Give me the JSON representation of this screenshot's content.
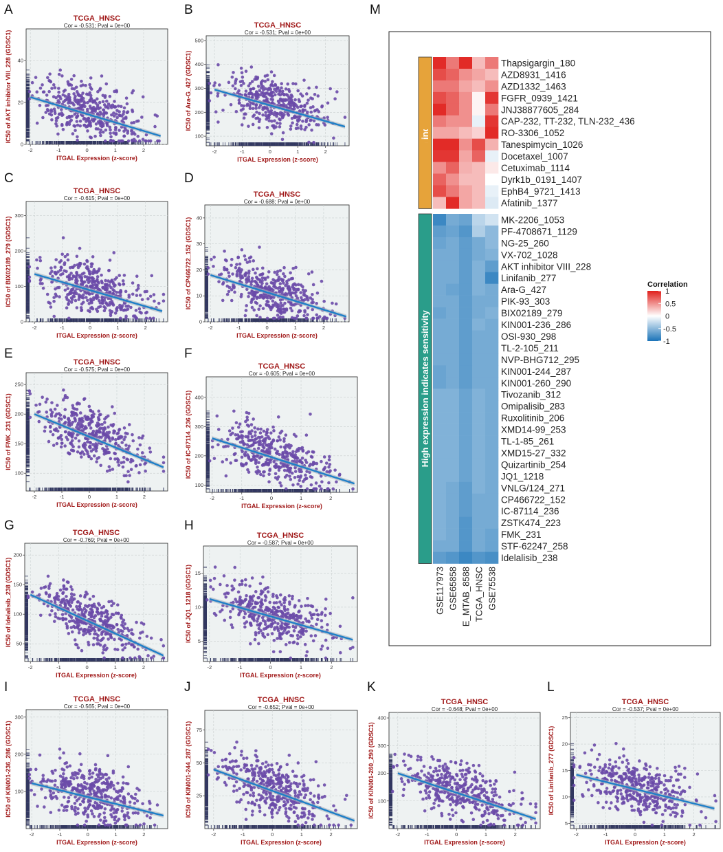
{
  "scatter_panels": [
    {
      "label": "A",
      "title": "TCGA_HNSC",
      "subtitle": "Cor = -0.531; Pval = 0e+00",
      "xlabel": "ITGAL Expression (z-score)",
      "ylabel": "IC50 of AKT inhibitor VIII_228 (GDSC1)",
      "xticks": [
        -2,
        -1,
        0,
        1,
        2
      ],
      "ylim": [
        0,
        55
      ],
      "yticks": [
        0,
        20,
        40
      ],
      "xlim": [
        -2.15,
        2.85
      ],
      "fit": [
        [
          -2,
          22.5
        ],
        [
          2.6,
          4
        ]
      ],
      "noise": 0.22
    },
    {
      "label": "B",
      "title": "TCGA_HNSC",
      "subtitle": "Cor = -0.531; Pval = 0e+00",
      "xlabel": "ITGAL Expression (z-score)",
      "ylabel": "IC50 of Ara-G_427 (GDSC1)",
      "xticks": [
        -2,
        -1,
        0,
        1,
        2
      ],
      "ylim": [
        60,
        520
      ],
      "yticks": [
        100,
        200,
        300,
        400,
        500
      ],
      "xlim": [
        -2.3,
        2.85
      ],
      "fit": [
        [
          -2,
          295
        ],
        [
          2.7,
          140
        ]
      ],
      "noise": 0.2
    },
    {
      "label": "C",
      "title": "TCGA_HNSC",
      "subtitle": "Cor = -0.615; Pval = 0e+00",
      "xlabel": "ITGAL Expression (z-score)",
      "ylabel": "IC50 of BIX02189_279 (GDSC1)",
      "xticks": [
        -2,
        -1,
        0,
        1,
        2
      ],
      "ylim": [
        0,
        340
      ],
      "yticks": [
        0,
        100,
        200,
        300
      ],
      "xlim": [
        -2.3,
        2.8
      ],
      "fit": [
        [
          -2,
          135
        ],
        [
          2.6,
          30
        ]
      ],
      "noise": 0.2
    },
    {
      "label": "D",
      "title": "TCGA_HNSC",
      "subtitle": "Cor = -0.688; Pval = 0e+00",
      "xlabel": "ITGAL Expression (z-score)",
      "ylabel": "IC50 of CP466722_152 (GDSC1)",
      "xticks": [
        -2,
        -1,
        0,
        1,
        2
      ],
      "ylim": [
        0,
        45
      ],
      "yticks": [
        0,
        10,
        20,
        30,
        40
      ],
      "xlim": [
        -2.2,
        2.9
      ],
      "fit": [
        [
          -2,
          18
        ],
        [
          2.8,
          2
        ]
      ],
      "noise": 0.2
    },
    {
      "label": "E",
      "title": "TCGA_HNSC",
      "subtitle": "Cor = -0.575; Pval = 0e+00",
      "xlabel": "ITGAL Expression (z-score)",
      "ylabel": "IC50 of FMK_231 (GDSC1)",
      "xticks": [
        -2,
        -1,
        0,
        1,
        2
      ],
      "ylim": [
        70,
        270
      ],
      "yticks": [
        100,
        150,
        200,
        250
      ],
      "xlim": [
        -2.3,
        2.85
      ],
      "fit": [
        [
          -2,
          200
        ],
        [
          2.7,
          110
        ]
      ],
      "noise": 0.2
    },
    {
      "label": "F",
      "title": "TCGA_HNSC",
      "subtitle": "Cor = -0.605; Pval = 0e+00",
      "xlabel": "ITGAL Expression (z-score)",
      "ylabel": "IC50 of IC-87114_236 (GDSC1)",
      "xticks": [
        -2,
        -1,
        0,
        1,
        2
      ],
      "ylim": [
        75,
        470
      ],
      "yticks": [
        100,
        200,
        300,
        400
      ],
      "xlim": [
        -2.2,
        2.9
      ],
      "fit": [
        [
          -2,
          260
        ],
        [
          2.8,
          105
        ]
      ],
      "noise": 0.2
    },
    {
      "label": "G",
      "title": "TCGA_HNSC",
      "subtitle": "Cor = -0.769; Pval = 0e+00",
      "xlabel": "ITGAL Expression (z-score)",
      "ylabel": "IC50 of Idelalisib_238 (GDSC1)",
      "xticks": [
        -2,
        -1,
        0,
        1,
        2
      ],
      "ylim": [
        20,
        220
      ],
      "yticks": [
        50,
        100,
        150,
        200
      ],
      "xlim": [
        -2.2,
        2.85
      ],
      "fit": [
        [
          -2,
          133
        ],
        [
          2.7,
          30
        ]
      ],
      "noise": 0.18
    },
    {
      "label": "H",
      "title": "TCGA_HNSC",
      "subtitle": "Cor = -0.587; Pval = 0e+00",
      "xlabel": "ITGAL Expression (z-score)",
      "ylabel": "IC50 of JQ1_1218 (GDSC1)",
      "xticks": [
        -2,
        -1,
        0,
        1,
        2
      ],
      "ylim": [
        2,
        19
      ],
      "yticks": [
        5,
        10,
        15
      ],
      "xlim": [
        -2.2,
        2.85
      ],
      "fit": [
        [
          -2,
          11.2
        ],
        [
          2.7,
          5.2
        ]
      ],
      "noise": 0.2
    },
    {
      "label": "I",
      "title": "TCGA_HNSC",
      "subtitle": "Cor = -0.565; Pval = 0e+00",
      "xlabel": "ITGAL Expression (z-score)",
      "ylabel": "IC50 of KIN001-236_286 (GDSC1)",
      "xticks": [
        -2,
        -1,
        0,
        1,
        2
      ],
      "ylim": [
        0,
        320
      ],
      "yticks": [
        100,
        200,
        300
      ],
      "xlim": [
        -2.2,
        2.85
      ],
      "fit": [
        [
          -2,
          122
        ],
        [
          2.7,
          35
        ]
      ],
      "noise": 0.22
    },
    {
      "label": "J",
      "title": "TCGA_HNSC",
      "subtitle": "Cor = -0.652; Pval = 0e+00",
      "xlabel": "ITGAL Expression (z-score)",
      "ylabel": "IC50 of KIN001-244_287 (GDSC1)",
      "xticks": [
        -2,
        -1,
        0,
        1,
        2
      ],
      "ylim": [
        0,
        90
      ],
      "yticks": [
        25,
        50,
        75
      ],
      "xlim": [
        -2.3,
        2.9
      ],
      "fit": [
        [
          -2,
          45
        ],
        [
          2.8,
          6
        ]
      ],
      "noise": 0.2
    },
    {
      "label": "K",
      "title": "TCGA_HNSC",
      "subtitle": "Cor = -0.648; Pval = 0e+00",
      "xlabel": "ITGAL Expression (z-score)",
      "ylabel": "IC50 of KIN001-260_290 (GDSC1)",
      "xticks": [
        -2,
        -1,
        0,
        1,
        2
      ],
      "ylim": [
        0,
        420
      ],
      "yticks": [
        100,
        200,
        300,
        400
      ],
      "xlim": [
        -2.3,
        2.85
      ],
      "fit": [
        [
          -2,
          200
        ],
        [
          2.7,
          35
        ]
      ],
      "noise": 0.2
    },
    {
      "label": "L",
      "title": "TCGA_HNSC",
      "subtitle": "Cor = -0.537; Pval = 0e+00",
      "xlabel": "ITGAL Expression (z-score)",
      "ylabel": "IC50 of Linifanib_277 (GDSC1)",
      "xticks": [
        -2,
        -1,
        0,
        1,
        2
      ],
      "ylim": [
        4,
        26
      ],
      "yticks": [
        5,
        10,
        15,
        20,
        25
      ],
      "xlim": [
        -2.2,
        2.9
      ],
      "fit": [
        [
          -2,
          14.2
        ],
        [
          2.7,
          7.8
        ]
      ],
      "noise": 0.2
    }
  ],
  "heatmap": {
    "label": "M",
    "columns": [
      "GSE117973",
      "GSE65858",
      "E_MTAB_8588",
      "TCGA_HNSC",
      "GSE75538"
    ],
    "group_resistant": "High expression indicates resistance",
    "group_sensitive": "High expression indicates sensitivity",
    "legend_title": "Correlation",
    "legend_ticks": [
      "1",
      "0.5",
      "0",
      "-0.5",
      "-1"
    ],
    "resistant_rows": [
      {
        "drug": "Thapsigargin_180",
        "values": [
          0.95,
          0.6,
          0.95,
          0.3,
          0.6
        ]
      },
      {
        "drug": "AZD8931_1416",
        "values": [
          0.8,
          0.7,
          0.5,
          0.4,
          0.3
        ]
      },
      {
        "drug": "AZD1332_1463",
        "values": [
          0.6,
          0.6,
          0.4,
          0.3,
          0.5
        ]
      },
      {
        "drug": "FGFR_0939_1421",
        "values": [
          0.8,
          0.7,
          0.5,
          0.05,
          0.9
        ]
      },
      {
        "drug": "JNJ38877605_284",
        "values": [
          0.95,
          0.7,
          0.5,
          0.05,
          0.6
        ]
      },
      {
        "drug": "CAP-232, TT-232, TLN-232_436",
        "values": [
          0.6,
          0.5,
          0.5,
          -0.1,
          0.9
        ]
      },
      {
        "drug": "RO-3306_1052",
        "values": [
          0.4,
          0.4,
          0.3,
          0.2,
          0.95
        ]
      },
      {
        "drug": "Tanespimycin_1026",
        "values": [
          0.95,
          0.95,
          0.5,
          0.8,
          0.35
        ]
      },
      {
        "drug": "Docetaxel_1007",
        "values": [
          0.9,
          0.9,
          0.4,
          0.7,
          -0.1
        ]
      },
      {
        "drug": "Cetuximab_1114",
        "values": [
          0.5,
          0.7,
          0.35,
          0.3,
          0.1
        ]
      },
      {
        "drug": "Dyrk1b_0191_1407",
        "values": [
          0.7,
          0.5,
          0.3,
          0.3,
          0.0
        ]
      },
      {
        "drug": "EphB4_9721_1413",
        "values": [
          0.8,
          0.6,
          0.4,
          0.3,
          -0.1
        ]
      },
      {
        "drug": "Afatinib_1377",
        "values": [
          0.3,
          0.95,
          0.4,
          0.3,
          -0.15
        ]
      }
    ],
    "sensitive_rows": [
      {
        "drug": "MK-2206_1053",
        "values": [
          -0.85,
          -0.6,
          -0.65,
          -0.3,
          -0.2
        ]
      },
      {
        "drug": "PF-4708671_1129",
        "values": [
          -0.7,
          -0.65,
          -0.75,
          -0.35,
          -0.5
        ]
      },
      {
        "drug": "NG-25_260",
        "values": [
          -0.65,
          -0.6,
          -0.7,
          -0.6,
          -0.5
        ]
      },
      {
        "drug": "VX-702_1028",
        "values": [
          -0.6,
          -0.6,
          -0.7,
          -0.6,
          -0.55
        ]
      },
      {
        "drug": "AKT inhibitor VIII_228",
        "values": [
          -0.6,
          -0.6,
          -0.7,
          -0.55,
          -0.7
        ]
      },
      {
        "drug": "Linifanib_277",
        "values": [
          -0.6,
          -0.6,
          -0.7,
          -0.55,
          -0.85
        ]
      },
      {
        "drug": "Ara-G_427",
        "values": [
          -0.6,
          -0.65,
          -0.7,
          -0.55,
          -0.6
        ]
      },
      {
        "drug": "PIK-93_303",
        "values": [
          -0.6,
          -0.6,
          -0.7,
          -0.6,
          -0.6
        ]
      },
      {
        "drug": "BIX02189_279",
        "values": [
          -0.65,
          -0.6,
          -0.7,
          -0.6,
          -0.55
        ]
      },
      {
        "drug": "KIN001-236_286",
        "values": [
          -0.6,
          -0.6,
          -0.7,
          -0.55,
          -0.6
        ]
      },
      {
        "drug": "OSI-930_298",
        "values": [
          -0.6,
          -0.6,
          -0.7,
          -0.6,
          -0.6
        ]
      },
      {
        "drug": "TL-2-105_211",
        "values": [
          -0.6,
          -0.6,
          -0.7,
          -0.6,
          -0.6
        ]
      },
      {
        "drug": "NVP-BHG712_295",
        "values": [
          -0.6,
          -0.6,
          -0.7,
          -0.6,
          -0.6
        ]
      },
      {
        "drug": "KIN001-244_287",
        "values": [
          -0.65,
          -0.6,
          -0.7,
          -0.6,
          -0.6
        ]
      },
      {
        "drug": "KIN001-260_290",
        "values": [
          -0.65,
          -0.6,
          -0.7,
          -0.6,
          -0.6
        ]
      },
      {
        "drug": "Tivozanib_312",
        "values": [
          -0.55,
          -0.55,
          -0.65,
          -0.55,
          -0.6
        ]
      },
      {
        "drug": "Omipalisib_283",
        "values": [
          -0.55,
          -0.55,
          -0.65,
          -0.55,
          -0.6
        ]
      },
      {
        "drug": "Ruxolitinib_206",
        "values": [
          -0.55,
          -0.55,
          -0.65,
          -0.55,
          -0.6
        ]
      },
      {
        "drug": "XMD14-99_253",
        "values": [
          -0.55,
          -0.55,
          -0.65,
          -0.55,
          -0.6
        ]
      },
      {
        "drug": "TL-1-85_261",
        "values": [
          -0.55,
          -0.55,
          -0.65,
          -0.55,
          -0.6
        ]
      },
      {
        "drug": "XMD15-27_332",
        "values": [
          -0.55,
          -0.55,
          -0.65,
          -0.55,
          -0.6
        ]
      },
      {
        "drug": "Quizartinib_254",
        "values": [
          -0.55,
          -0.55,
          -0.65,
          -0.55,
          -0.6
        ]
      },
      {
        "drug": "JQ1_1218",
        "values": [
          -0.55,
          -0.55,
          -0.65,
          -0.55,
          -0.6
        ]
      },
      {
        "drug": "VNLG/124_271",
        "values": [
          -0.55,
          -0.6,
          -0.7,
          -0.55,
          -0.6
        ]
      },
      {
        "drug": "CP466722_152",
        "values": [
          -0.55,
          -0.6,
          -0.7,
          -0.6,
          -0.6
        ]
      },
      {
        "drug": "IC-87114_236",
        "values": [
          -0.55,
          -0.6,
          -0.7,
          -0.6,
          -0.6
        ]
      },
      {
        "drug": "ZSTK474_223",
        "values": [
          -0.55,
          -0.6,
          -0.75,
          -0.6,
          -0.6
        ]
      },
      {
        "drug": "FMK_231",
        "values": [
          -0.55,
          -0.6,
          -0.75,
          -0.6,
          -0.65
        ]
      },
      {
        "drug": "STF-62247_258",
        "values": [
          -0.6,
          -0.6,
          -0.75,
          -0.6,
          -0.65
        ]
      },
      {
        "drug": "Idelalisib_238",
        "values": [
          -0.7,
          -0.75,
          -0.85,
          -0.75,
          -0.8
        ]
      }
    ]
  },
  "colors": {
    "point": "#6a4aa8",
    "line": "#1e7fc8",
    "panel_bg": "#eef2f2",
    "red": "#e0201c",
    "blue": "#1a73b8",
    "orange": "#e6a33a",
    "teal": "#2a9d8a",
    "title_red": "#a11a1a"
  }
}
